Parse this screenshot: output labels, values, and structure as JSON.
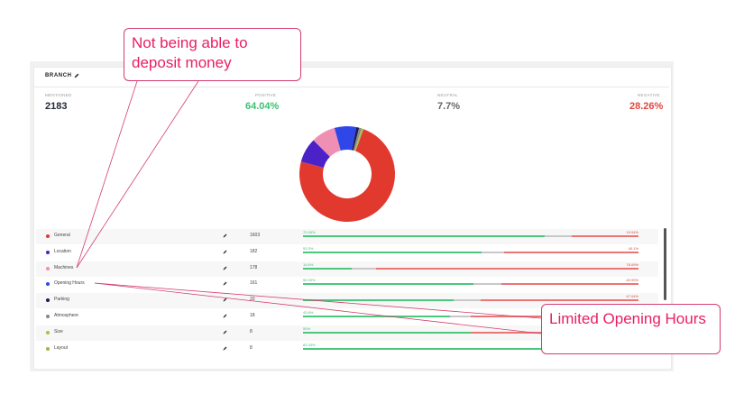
{
  "panel": {
    "title": "BRANCH",
    "stats": {
      "mentioned": {
        "label": "MENTIONED",
        "value": "2183"
      },
      "positive": {
        "label": "POSITIVE",
        "value": "64.04%"
      },
      "neutral": {
        "label": "NEUTRAL",
        "value": "7.7%"
      },
      "negative": {
        "label": "NEGATIVE",
        "value": "28.26%"
      }
    }
  },
  "donut": [
    {
      "name": "General",
      "value": 1603,
      "color": "#e2392f"
    },
    {
      "name": "Location",
      "value": 182,
      "color": "#4b22c8"
    },
    {
      "name": "Machines",
      "value": 178,
      "color": "#ef8fb4"
    },
    {
      "name": "Opening Hours",
      "value": 161,
      "color": "#2f47e8"
    },
    {
      "name": "Parking",
      "value": 20,
      "color": "#1b1b4d"
    },
    {
      "name": "Atmosphere",
      "value": 18,
      "color": "#888888"
    },
    {
      "name": "Size",
      "value": 8,
      "color": "#b5b84a"
    },
    {
      "name": "Layout",
      "value": 8,
      "color": "#9ab84a"
    }
  ],
  "topics": [
    {
      "name": "General",
      "count": "1603",
      "pos_label": "72.05%",
      "neg_label": "19.94%",
      "pos": 0.7205,
      "neg": 0.1994,
      "color": "#e2392f"
    },
    {
      "name": "Location",
      "count": "182",
      "pos_label": "53.3%",
      "neg_label": "40.1%",
      "pos": 0.533,
      "neg": 0.401,
      "color": "#4b22c8"
    },
    {
      "name": "Machines",
      "count": "178",
      "pos_label": "14.6%",
      "neg_label": "78.09%",
      "pos": 0.146,
      "neg": 0.7809,
      "color": "#ef8fb4"
    },
    {
      "name": "Opening Hours",
      "count": "161",
      "pos_label": "50.93%",
      "neg_label": "40.99%",
      "pos": 0.5093,
      "neg": 0.4099,
      "color": "#2f47e8"
    },
    {
      "name": "Parking",
      "count": "20",
      "pos_label": "",
      "neg_label": "47.04%",
      "pos": 0.45,
      "neg": 0.4704,
      "color": "#1b1b4d"
    },
    {
      "name": "Atmosphere",
      "count": "18",
      "pos_label": "43.8%",
      "neg_label": "",
      "pos": 0.438,
      "neg": 0.5,
      "color": "#888888"
    },
    {
      "name": "Size",
      "count": "8",
      "pos_label": "50%",
      "neg_label": "",
      "pos": 0.5,
      "neg": 0.5,
      "color": "#b5b84a"
    },
    {
      "name": "Layout",
      "count": "8",
      "pos_label": "83.33%",
      "neg_label": "",
      "pos": 0.8333,
      "neg": 0.1667,
      "color": "#9ab84a"
    }
  ],
  "callouts": {
    "deposit": "Not being able to deposit money",
    "hours": "Limited Opening Hours"
  },
  "colors": {
    "positive": "#3cbf73",
    "negative": "#e2463f",
    "callout": "#e91e63"
  }
}
